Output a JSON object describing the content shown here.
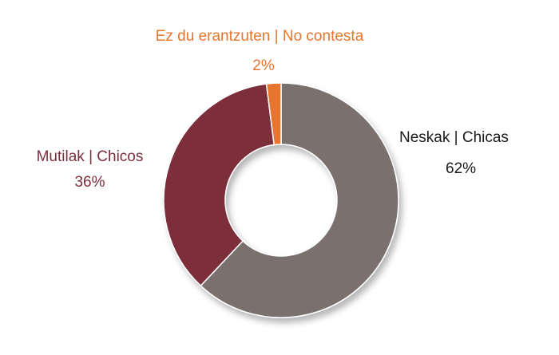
{
  "chart_data": {
    "type": "pie",
    "variant": "donut",
    "title": "",
    "legend": "none",
    "slices": [
      {
        "label": "Neskak | Chicas",
        "value": 62,
        "display": "62%",
        "color": "#7a706d",
        "label_color": "#1a1a1a"
      },
      {
        "label": "Mutilak | Chicos",
        "value": 36,
        "display": "36%",
        "color": "#7b2e3b",
        "label_color": "#7b2e3b"
      },
      {
        "label": "Ez du erantzuten | No contesta",
        "value": 2,
        "display": "2%",
        "color": "#e8752e",
        "label_color": "#e8752e"
      }
    ]
  }
}
